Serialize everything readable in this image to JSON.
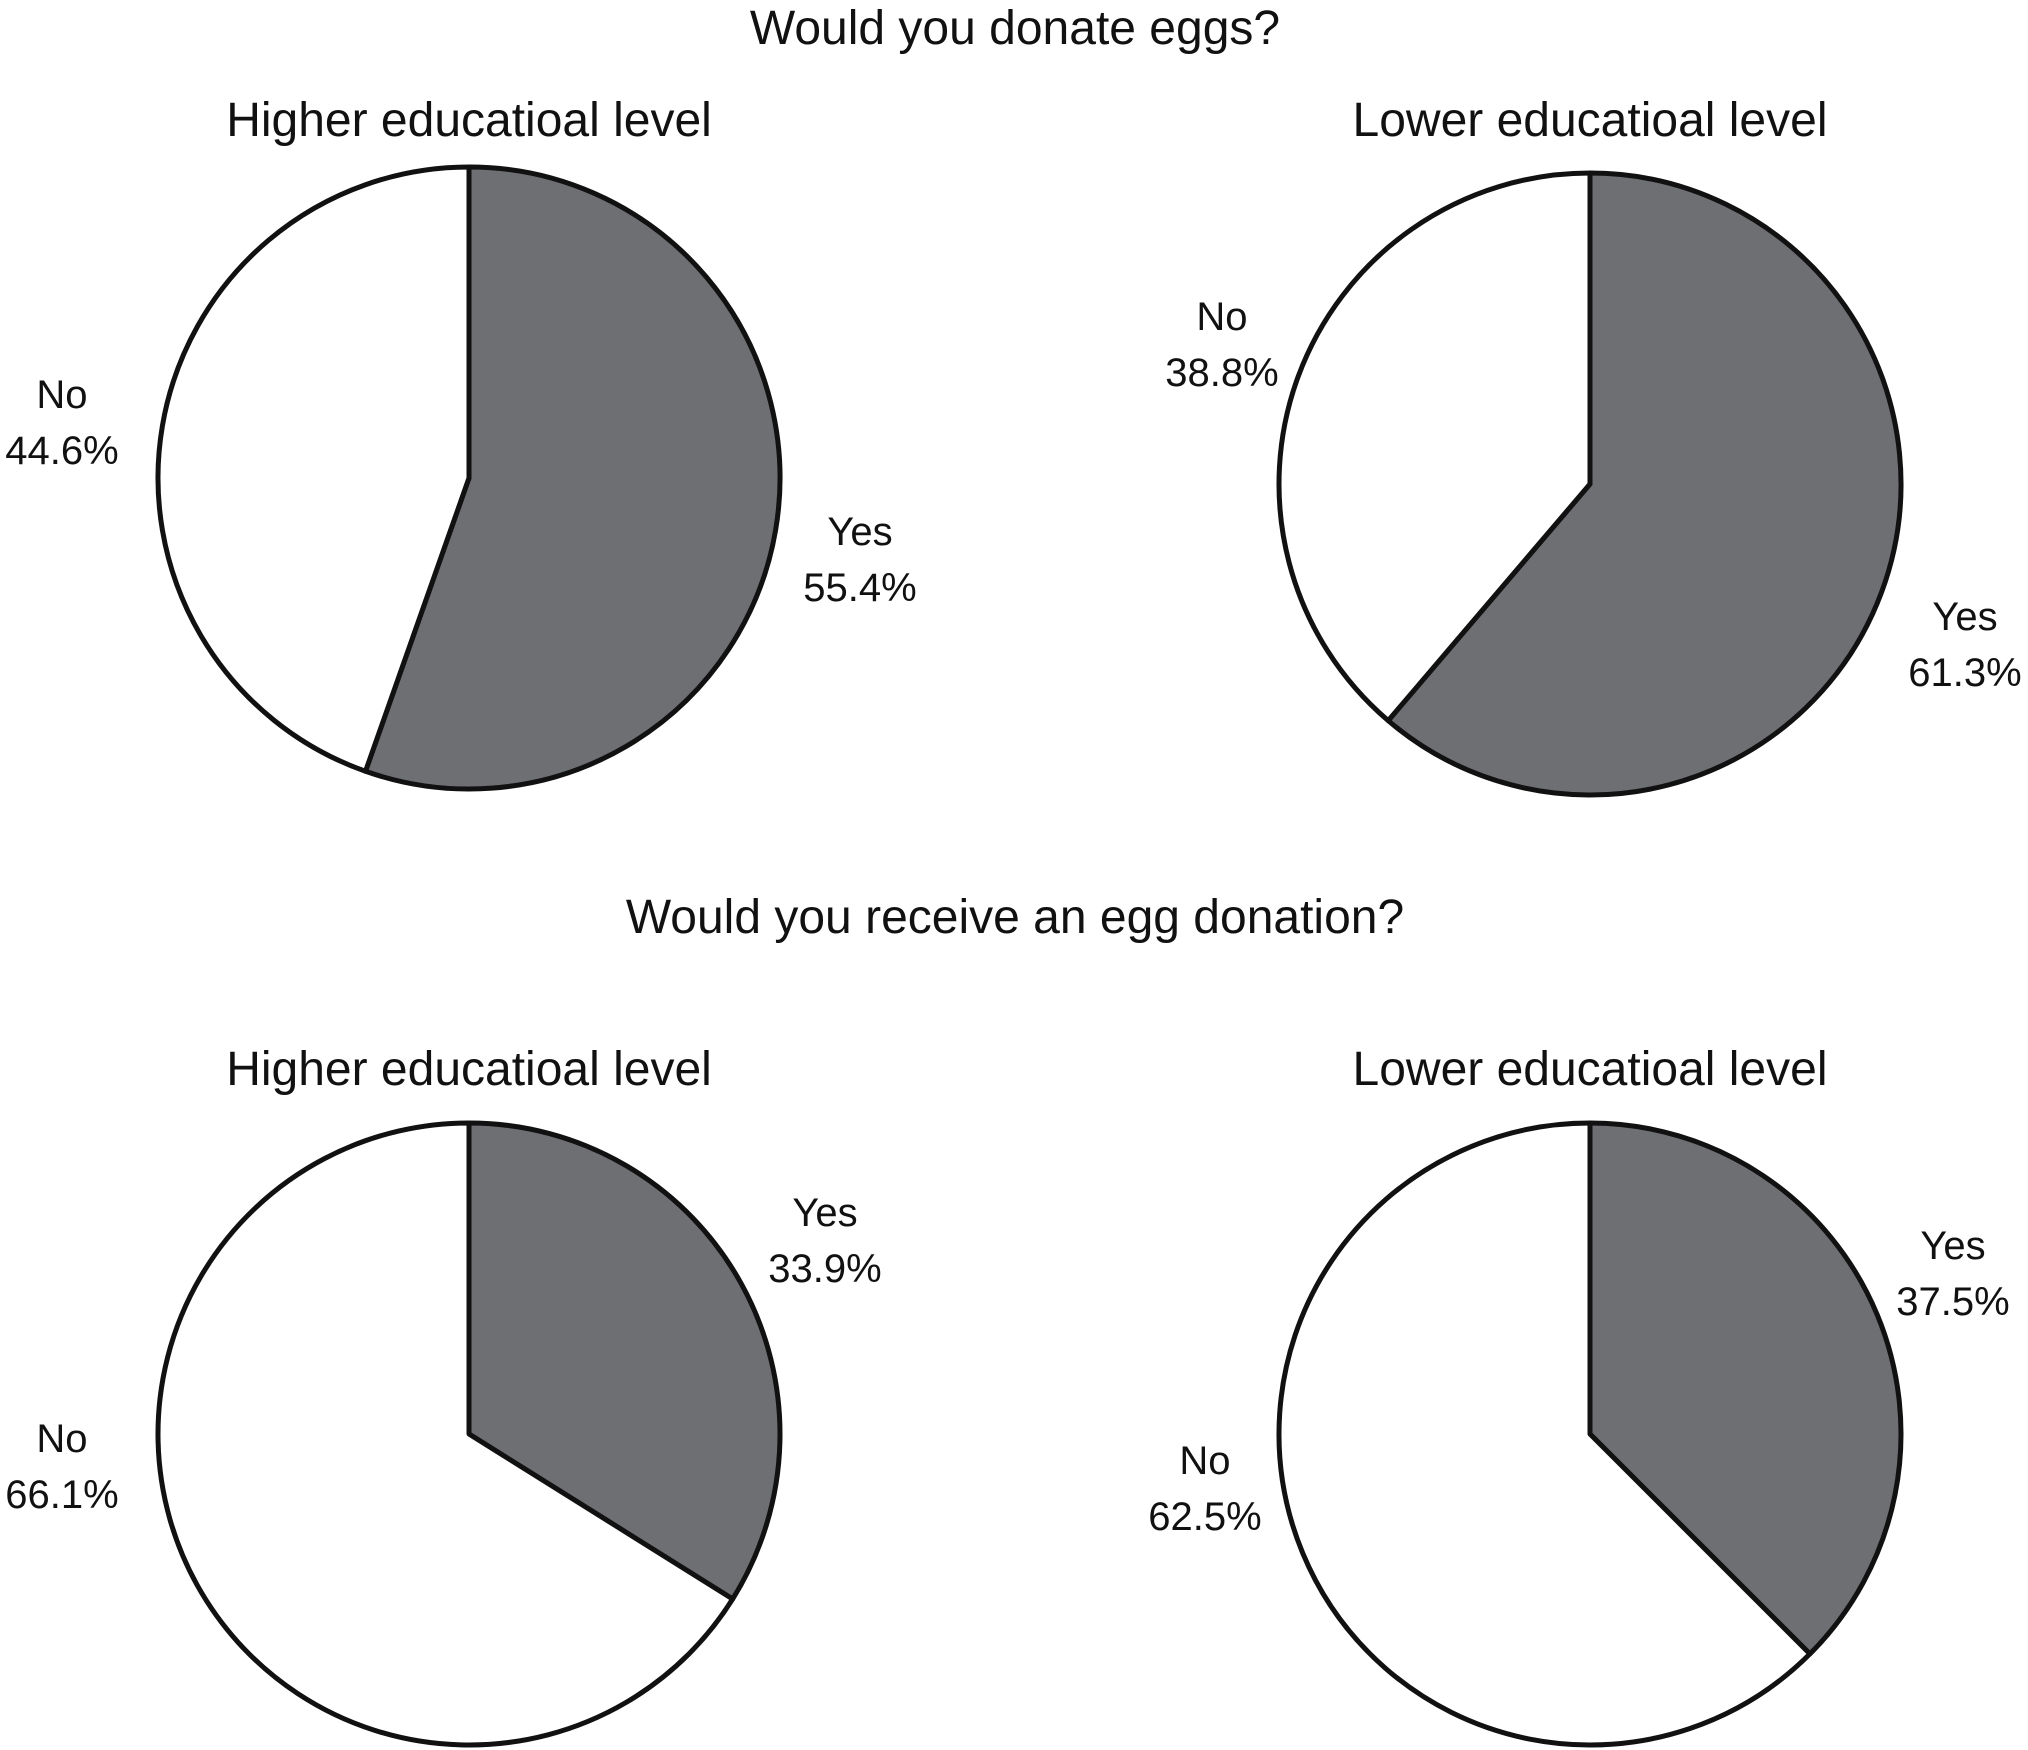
{
  "colors": {
    "yes": "#6e6f73",
    "no": "#ffffff",
    "stroke": "#111111",
    "background": "#ffffff"
  },
  "sections": [
    {
      "title": "Would you donate eggs?"
    },
    {
      "title": "Would you receive an egg donation?"
    }
  ],
  "chart_data": [
    {
      "type": "pie",
      "section": "Would you donate eggs?",
      "title": "Higher educatioal level",
      "slices": [
        {
          "name": "Yes",
          "value": 55.4,
          "label": "55.4%",
          "color": "#6e6f73"
        },
        {
          "name": "No",
          "value": 44.6,
          "label": "44.6%",
          "color": "#ffffff"
        }
      ]
    },
    {
      "type": "pie",
      "section": "Would you donate eggs?",
      "title": "Lower educatioal level",
      "slices": [
        {
          "name": "Yes",
          "value": 61.3,
          "label": "61.3%",
          "color": "#6e6f73"
        },
        {
          "name": "No",
          "value": 38.8,
          "label": "38.8%",
          "color": "#ffffff"
        }
      ]
    },
    {
      "type": "pie",
      "section": "Would you receive an egg donation?",
      "title": "Higher educatioal level",
      "slices": [
        {
          "name": "Yes",
          "value": 33.9,
          "label": "33.9%",
          "color": "#6e6f73"
        },
        {
          "name": "No",
          "value": 66.1,
          "label": "66.1%",
          "color": "#ffffff"
        }
      ]
    },
    {
      "type": "pie",
      "section": "Would you receive an egg donation?",
      "title": "Lower educatioal level",
      "slices": [
        {
          "name": "Yes",
          "value": 37.5,
          "label": "37.5%",
          "color": "#6e6f73"
        },
        {
          "name": "No",
          "value": 62.5,
          "label": "62.5%",
          "color": "#ffffff"
        }
      ]
    }
  ]
}
